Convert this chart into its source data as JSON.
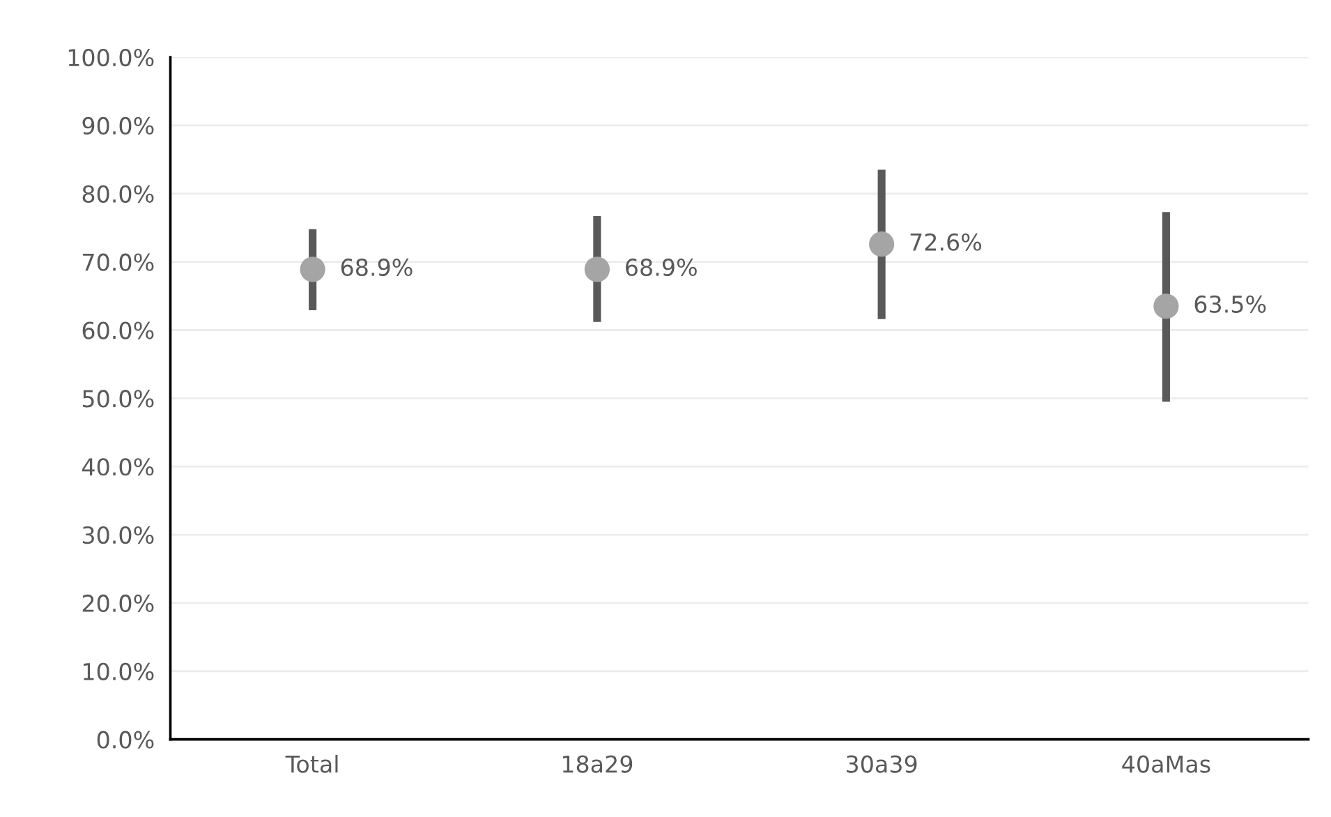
{
  "chart_data": {
    "type": "scatter",
    "categories": [
      "Total",
      "18a29",
      "30a39",
      "40aMas"
    ],
    "values": [
      68.9,
      68.9,
      72.6,
      63.5
    ],
    "errors": [
      [
        62.9,
        74.8
      ],
      [
        61.2,
        76.7
      ],
      [
        61.6,
        83.5
      ],
      [
        49.5,
        77.3
      ]
    ],
    "value_labels": [
      "68.9%",
      "68.9%",
      "72.6%",
      "63.5%"
    ],
    "color": "#a5a5a5",
    "marker": "circle",
    "ylim": [
      0,
      100
    ],
    "yticks": [
      {
        "value": 0,
        "label": "0.0%"
      },
      {
        "value": 10,
        "label": "10.0%"
      },
      {
        "value": 20,
        "label": "20.0%"
      },
      {
        "value": 30,
        "label": "30.0%"
      },
      {
        "value": 40,
        "label": "40.0%"
      },
      {
        "value": 50,
        "label": "50.0%"
      },
      {
        "value": 60,
        "label": "60.0%"
      },
      {
        "value": 70,
        "label": "70.0%"
      },
      {
        "value": 80,
        "label": "80.0%"
      },
      {
        "value": 90,
        "label": "90.0%"
      },
      {
        "value": 100,
        "label": "100.0%"
      }
    ],
    "grid": "y"
  }
}
